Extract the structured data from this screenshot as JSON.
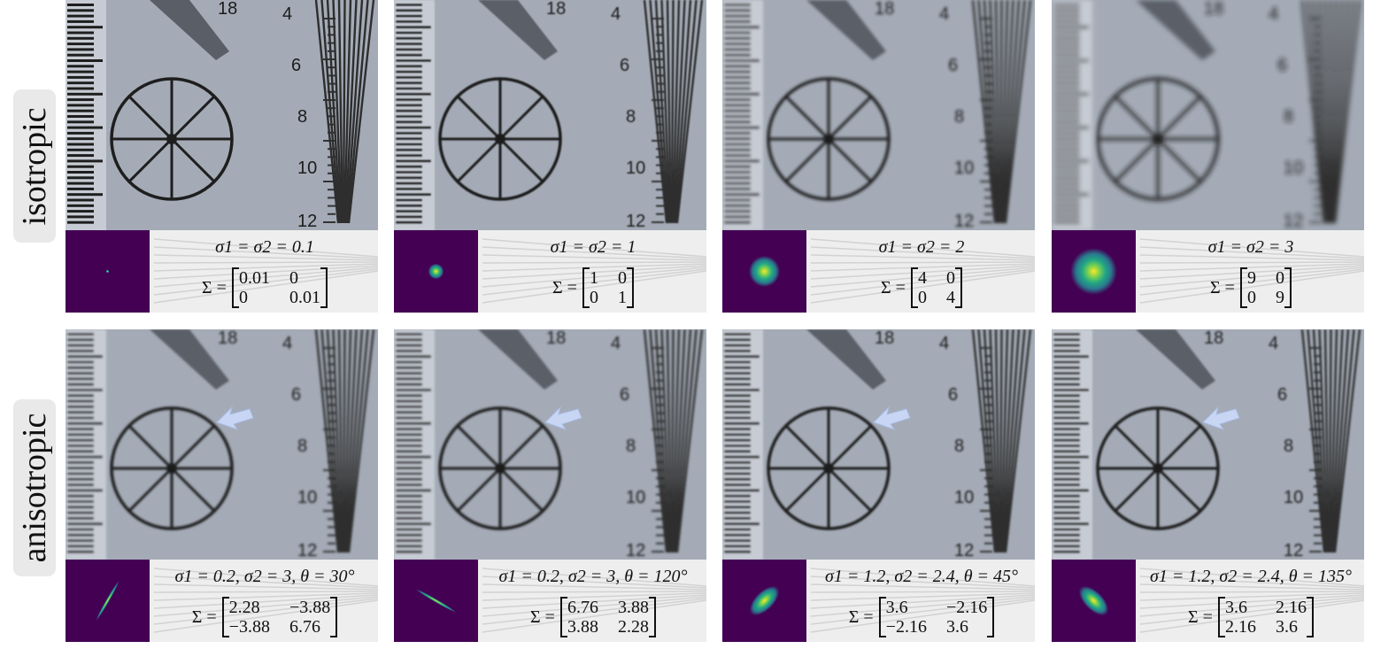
{
  "rows": [
    {
      "label": "isotropic"
    },
    {
      "label": "anisotropic"
    }
  ],
  "chart_tick_labels": [
    "18",
    "4",
    "6",
    "8",
    "10",
    "12"
  ],
  "panels": [
    {
      "row": 0,
      "blur": 0.0,
      "arrow": false,
      "params": "σ1 = σ2 = 0.1",
      "matrix": [
        "0.01",
        "0",
        "0",
        "0.01"
      ],
      "kernel": {
        "sx": 0.1,
        "sy": 0.1,
        "theta": 0
      }
    },
    {
      "row": 0,
      "blur": 0.8,
      "arrow": false,
      "params": "σ1 = σ2 = 1",
      "matrix": [
        "1",
        "0",
        "0",
        "1"
      ],
      "kernel": {
        "sx": 1,
        "sy": 1,
        "theta": 0
      }
    },
    {
      "row": 0,
      "blur": 1.6,
      "arrow": false,
      "params": "σ1 = σ2 = 2",
      "matrix": [
        "4",
        "0",
        "0",
        "4"
      ],
      "kernel": {
        "sx": 2,
        "sy": 2,
        "theta": 0
      }
    },
    {
      "row": 0,
      "blur": 2.6,
      "arrow": false,
      "params": "σ1 = σ2 = 3",
      "matrix": [
        "9",
        "0",
        "0",
        "9"
      ],
      "kernel": {
        "sx": 3,
        "sy": 3,
        "theta": 0
      }
    },
    {
      "row": 1,
      "blur": 1.4,
      "arrow": true,
      "params": "σ1 = 0.2, σ2 = 3, θ = 30°",
      "matrix": [
        "2.28",
        "−3.88",
        "−3.88",
        "6.76"
      ],
      "kernel": {
        "sx": 0.2,
        "sy": 3,
        "theta": 30
      }
    },
    {
      "row": 1,
      "blur": 1.4,
      "arrow": true,
      "params": "σ1 = 0.2, σ2 = 3, θ = 120°",
      "matrix": [
        "6.76",
        "3.88",
        "3.88",
        "2.28"
      ],
      "kernel": {
        "sx": 0.2,
        "sy": 3,
        "theta": 120
      }
    },
    {
      "row": 1,
      "blur": 1.0,
      "arrow": true,
      "params": "σ1 = 1.2, σ2 = 2.4, θ = 45°",
      "matrix": [
        "3.6",
        "−2.16",
        "−2.16",
        "3.6"
      ],
      "kernel": {
        "sx": 1.2,
        "sy": 2.4,
        "theta": 45
      }
    },
    {
      "row": 1,
      "blur": 1.0,
      "arrow": true,
      "params": "σ1 = 1.2, σ2 = 2.4, θ = 135°",
      "matrix": [
        "3.6",
        "2.16",
        "2.16",
        "3.6"
      ],
      "kernel": {
        "sx": 1.2,
        "sy": 2.4,
        "theta": 135
      }
    }
  ],
  "colors": {
    "chart_bg": "#a4abb6",
    "ink": "#1e1e1e",
    "kernel_bg": "#440154",
    "arrow": "#c9d6f3"
  }
}
